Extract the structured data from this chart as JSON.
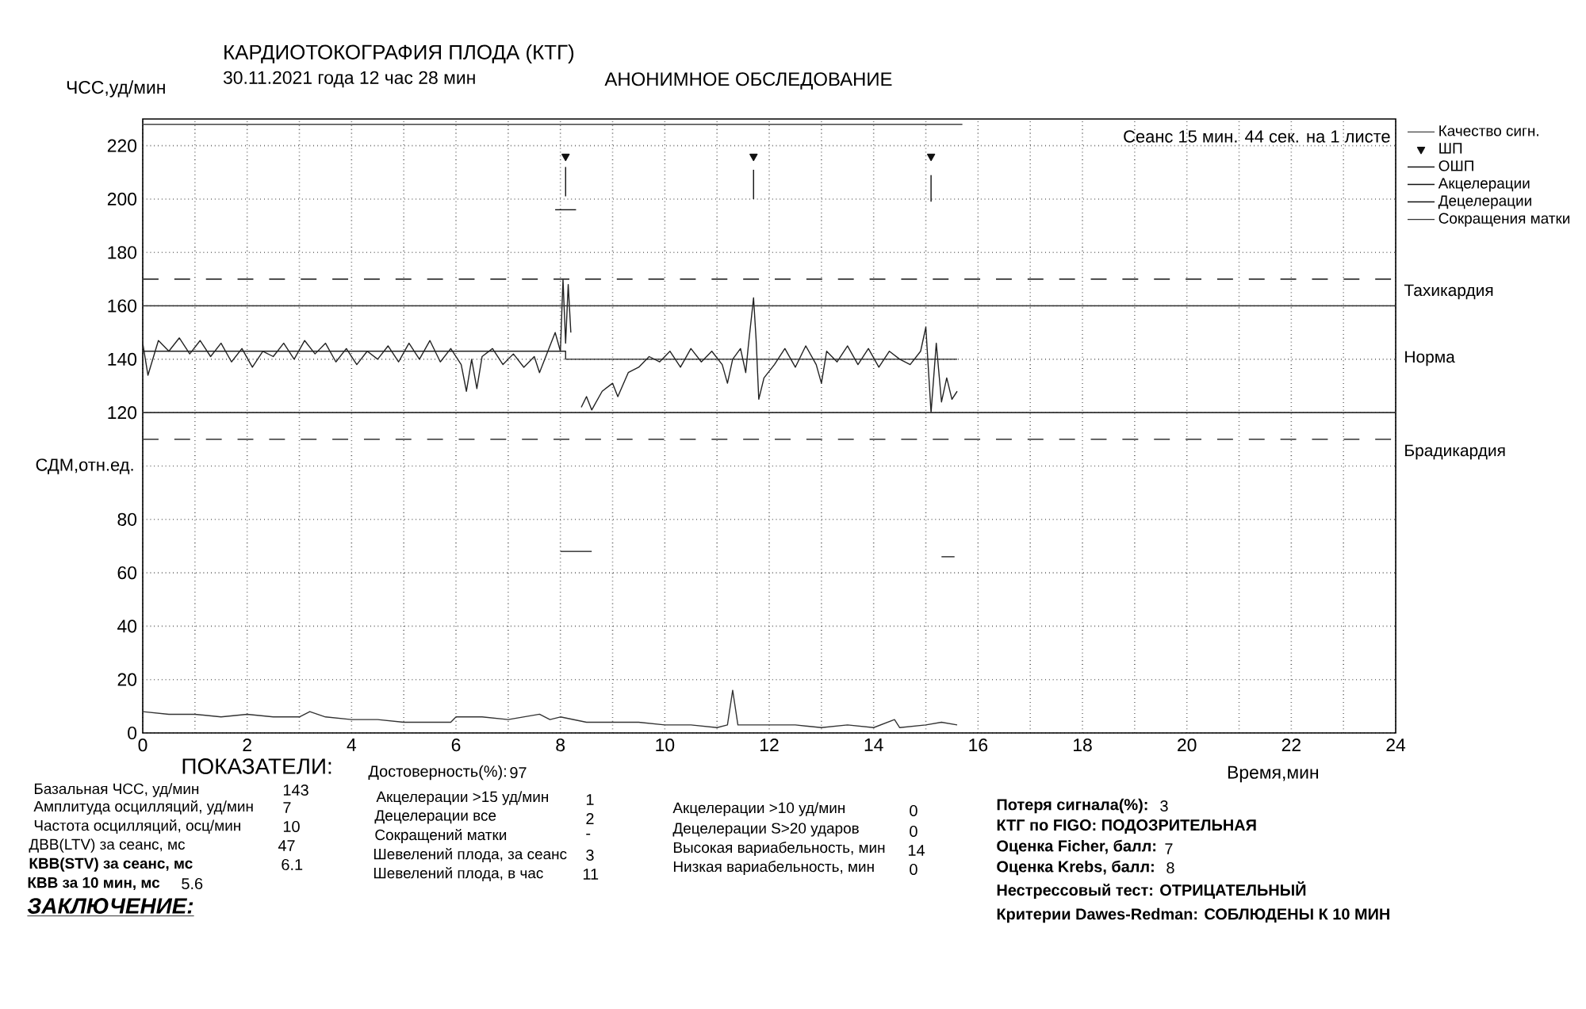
{
  "chart_data": {
    "type": "line",
    "title": "КАРДИОТОКОГРАФИЯ ПЛОДА (КТГ)",
    "subtitle": "30.11.2021 года 12 час 28 мин",
    "xlabel": "Время,мин",
    "ylabel": "ЧСС,уд/мин",
    "xlim": [
      0,
      24
    ],
    "ylim": [
      0,
      230
    ],
    "xticks": [
      0,
      {
        "value": 1,
        "label": null
      },
      2,
      {
        "value": 3,
        "label": null
      },
      4,
      {
        "value": 5,
        "label": null
      },
      6,
      {
        "value": 7,
        "label": null
      },
      8,
      {
        "value": 9,
        "label": null
      },
      10,
      {
        "value": 11,
        "label": null
      },
      12,
      {
        "value": 13,
        "label": null
      },
      14,
      {
        "value": 15,
        "label": null
      },
      16,
      {
        "value": 17,
        "label": null
      },
      18,
      {
        "value": 19,
        "label": null
      },
      20,
      {
        "value": 21,
        "label": null
      },
      22,
      {
        "value": 23,
        "label": null
      },
      24
    ],
    "yticks": [
      0,
      20,
      40,
      60,
      80,
      {
        "value": 100,
        "label": null
      },
      120,
      140,
      160,
      180,
      200,
      220
    ],
    "grid": true,
    "legend": "right",
    "marker": "none",
    "line_style": "solid",
    "ref_lines": [
      {
        "axis": "y",
        "value": 170,
        "line_style": "dashed",
        "color": "#333333"
      },
      {
        "axis": "y",
        "value": 160,
        "line_style": "solid",
        "color": "#333333"
      },
      {
        "axis": "y",
        "value": 120,
        "line_style": "solid",
        "color": "#333333"
      },
      {
        "axis": "y",
        "value": 110,
        "line_style": "dashed",
        "color": "#333333"
      }
    ],
    "series": [
      {
        "color": "#222222",
        "x": [
          0,
          0.1,
          0.3,
          0.5,
          0.7,
          0.9,
          1.1,
          1.3,
          1.5,
          1.7,
          1.9,
          2.1,
          2.3,
          2.5,
          2.7,
          2.9,
          3.1,
          3.3,
          3.5,
          3.7,
          3.9,
          4.1,
          4.3,
          4.5,
          4.7,
          4.9,
          5.1,
          5.3,
          5.5,
          5.7,
          5.9,
          6.1,
          6.2,
          6.3,
          6.4,
          6.5,
          6.7,
          6.9,
          7.1,
          7.3,
          7.5,
          7.6,
          7.8,
          7.9,
          8.0,
          8.05,
          8.1,
          8.15,
          8.2,
          8.3,
          8.4,
          8.5,
          8.6,
          8.8,
          9.0,
          9.1,
          9.3,
          9.5,
          9.7,
          9.9,
          10.1,
          10.3,
          10.5,
          10.7,
          10.9,
          11.1,
          11.2,
          11.3,
          11.45,
          11.55,
          11.6,
          11.7,
          11.75,
          11.8,
          11.9,
          12.1,
          12.3,
          12.5,
          12.7,
          12.9,
          13.0,
          13.1,
          13.3,
          13.5,
          13.7,
          13.9,
          14.1,
          14.3,
          14.5,
          14.7,
          14.9,
          15.0,
          15.1,
          15.2,
          15.3,
          15.4,
          15.5,
          15.6
        ],
        "values": [
          146,
          134,
          147,
          143,
          148,
          142,
          147,
          141,
          146,
          139,
          144,
          137,
          143,
          141,
          146,
          140,
          147,
          142,
          146,
          139,
          144,
          138,
          143,
          140,
          145,
          139,
          146,
          140,
          147,
          139,
          144,
          138,
          128,
          140,
          129,
          141,
          144,
          138,
          142,
          137,
          141,
          135,
          145,
          150,
          143,
          170,
          146,
          168,
          150,
          null,
          122,
          126,
          121,
          128,
          131,
          126,
          135,
          137,
          141,
          139,
          143,
          137,
          144,
          139,
          143,
          138,
          131,
          140,
          144,
          135,
          145,
          163,
          147,
          125,
          133,
          138,
          144,
          137,
          145,
          138,
          131,
          143,
          139,
          145,
          138,
          144,
          137,
          143,
          140,
          138,
          143,
          152,
          120,
          146,
          124,
          133,
          125,
          128
        ]
      },
      {
        "color": "#222222",
        "x": [
          0,
          8.1,
          8.1,
          15.6
        ],
        "values": [
          143,
          143,
          140,
          140
        ]
      },
      {
        "name": "Качество сигн.",
        "color": "#444444",
        "x": [
          0,
          15.7
        ],
        "values": [
          228,
          228
        ]
      },
      {
        "name": "ШП",
        "type": "scatter",
        "marker": "triangle",
        "color": "#111111",
        "x": [
          8.1,
          11.7,
          15.1
        ],
        "values": [
          216,
          216,
          216
        ]
      },
      {
        "name": "ОШП",
        "color": "#111111",
        "x": [
          8.1,
          8.1,
          8.11,
          11.7,
          11.7,
          11.71,
          15.1,
          15.1
        ],
        "values": [
          201,
          212,
          null,
          200,
          211,
          null,
          199,
          209
        ]
      },
      {
        "name": "Акцелерации",
        "color": "#111111",
        "x": [
          7.9,
          8.3
        ],
        "values": [
          196,
          196
        ]
      },
      {
        "name": "Децелерации",
        "color": "#111111",
        "x": [
          8.0,
          8.6,
          8.61,
          15.3,
          15.55
        ],
        "values": [
          68,
          68,
          null,
          66,
          66
        ]
      },
      {
        "name": "Сокращения матки",
        "color": "#333333",
        "x": [
          0,
          0.5,
          1,
          1.5,
          2,
          2.5,
          3,
          3.2,
          3.5,
          4,
          4.5,
          5,
          5.5,
          5.9,
          6,
          6.5,
          7,
          7.6,
          7.8,
          8,
          8.5,
          9,
          9.5,
          10,
          10.5,
          11,
          11.2,
          11.3,
          11.4,
          12,
          12.5,
          13,
          13.5,
          14,
          14.4,
          14.5,
          15,
          15.3,
          15.6
        ],
        "values": [
          8,
          7,
          7,
          6,
          7,
          6,
          6,
          8,
          6,
          5,
          5,
          4,
          4,
          4,
          6,
          6,
          5,
          7,
          5,
          6,
          4,
          4,
          4,
          3,
          3,
          2,
          3,
          16,
          3,
          3,
          3,
          2,
          3,
          2,
          5,
          2,
          3,
          4,
          3
        ]
      }
    ],
    "annotations": [
      "АНОНИМНОЕ ОБСЛЕДОВАНИЕ",
      "Сеанс 15 мин. 44 сек. на 1 листе",
      "СДМ,отн.ед.",
      "ПОКАЗАТЕЛИ:",
      "Базальная ЧСС, уд/мин",
      "143",
      "Амплитуда осцилляций, уд/мин",
      "7",
      "Частота осцилляций, осц/мин",
      "10",
      "ДВВ(LTV) за сеанс, мс",
      "47",
      "КВВ(STV) за сеанс, мс",
      "6.1",
      "КВВ за 10 мин, мс",
      "5.6",
      "ЗАКЛЮЧЕНИЕ:",
      "Достоверность(%):",
      "97",
      "Акцелерации >15 уд/мин",
      "1",
      "Децелерации все",
      "2",
      "Сокращений матки",
      "-",
      "Шевелений плода, за сеанс",
      "3",
      "Шевелений плода, в час",
      "11",
      "Акцелерации >10 уд/мин",
      "0",
      "Децелерации S>20 ударов",
      "0",
      "Высокая вариабельность, мин",
      "14",
      "Низкая вариабельность, мин",
      "0",
      "Потеря сигнала(%):",
      "3",
      "КТГ по FIGO: ПОДОЗРИТЕЛЬНАЯ",
      "Оценка Ficher, балл:",
      "7",
      "Оценка Krebs, балл:",
      "8",
      "Нестрессовый тест: ОТРИЦАТЕЛЬНЫЙ",
      "Критерии Dawes-Redman: СОБЛЮДЕНЫ К 10 МИН",
      "Тахикардия",
      "Норма",
      "Брадикардия"
    ]
  }
}
